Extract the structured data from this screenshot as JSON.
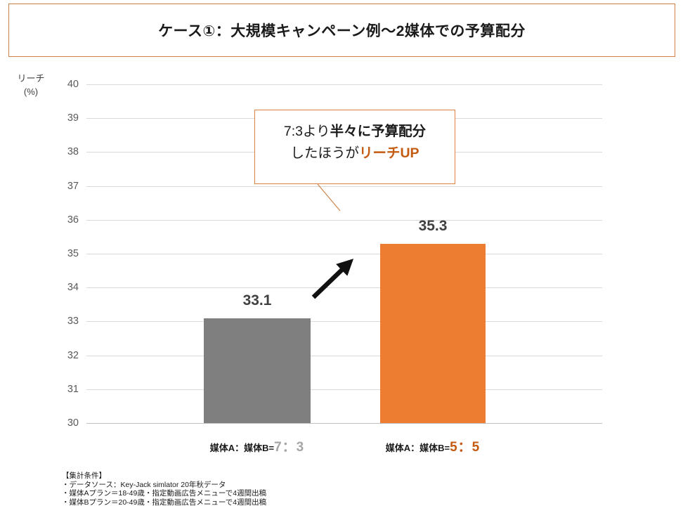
{
  "title": "ケース①：大規模キャンペーン例〜2媒体での予算配分",
  "chart_data": {
    "type": "bar",
    "title": "ケース①：大規模キャンペーン例〜2媒体での予算配分",
    "ylabel_line1": "リーチ",
    "ylabel_line2": "(%)",
    "ylim": [
      30,
      40
    ],
    "ytick_step": 1,
    "grid": true,
    "legend": "none",
    "categories": [
      "媒体A：媒体B=7：3",
      "媒体A：媒体B=5：5"
    ],
    "values": [
      33.1,
      35.3
    ],
    "bar_colors": [
      "#7F7F7F",
      "#ED7D31"
    ],
    "x_labels": [
      {
        "prefix": "媒体A：媒体B=",
        "ratio": "7：3",
        "ratio_color": "#A6A6A6"
      },
      {
        "prefix": "媒体A：媒体B=",
        "ratio": "5：5",
        "ratio_color": "#C55A11"
      }
    ]
  },
  "annotation": {
    "line1_normal": "7:3より",
    "line1_bold": "半々に予算配分",
    "line2_normal": "したほうが",
    "line2_bold": "リーチUP",
    "bold2_color": "#C55A11",
    "border_color": "#DE8244"
  },
  "footer": {
    "lines": [
      "【集計条件】",
      "・データソース：Key-Jack simlator 20年秋データ",
      "・媒体Aプラン＝18-49歳・指定動画広告メニューで4週間出稿",
      "・媒体Bプラン＝20-49歳・指定動画広告メニューで4週間出稿"
    ]
  },
  "colors": {
    "title_border": "#CE8147",
    "value_label": "#404040",
    "tick_label": "#595959",
    "gridline": "#D9D9D9",
    "baseline": "#BFBFBF",
    "arrow": "#111111",
    "leader_line": "#D0864C"
  }
}
